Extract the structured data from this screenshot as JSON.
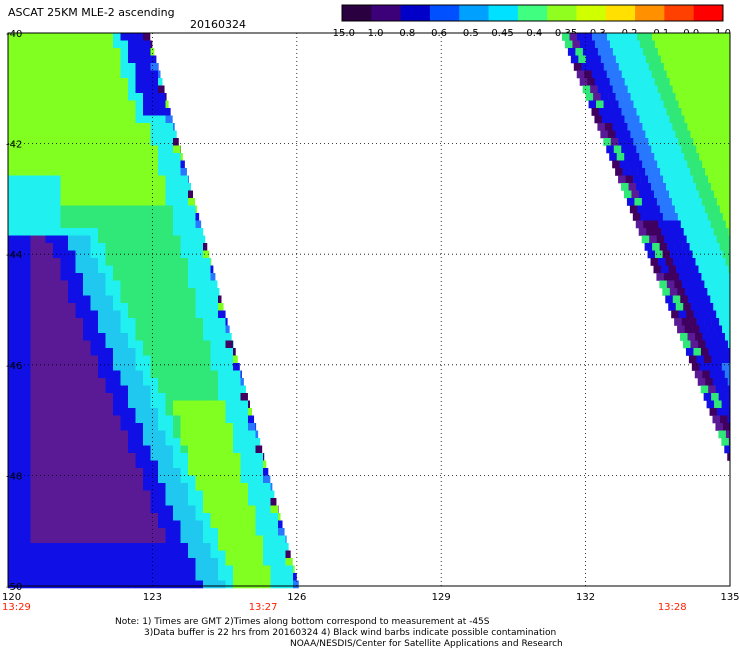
{
  "header": {
    "title": "ASCAT 25KM MLE-2 ascending",
    "date": "20160324"
  },
  "colorbar": {
    "labels": [
      "-15.0",
      "-1.0",
      "-0.8",
      "-0.6",
      "-0.5",
      "-0.45",
      "-0.4",
      "-0.35",
      "-0.3",
      "-0.2",
      "-0.1",
      "0.0",
      "1.0"
    ],
    "colors": [
      "#2a0040",
      "#3c0078",
      "#0000c8",
      "#0050ff",
      "#00a0ff",
      "#00e0ff",
      "#40ff80",
      "#90ff20",
      "#d0ff00",
      "#ffe000",
      "#ff9000",
      "#ff4000",
      "#ff0000"
    ]
  },
  "map": {
    "lat_labels": [
      "-40",
      "-42",
      "-44",
      "-46",
      "-48",
      "-50"
    ],
    "lon_labels": [
      "120",
      "123",
      "126",
      "129",
      "132",
      "135"
    ],
    "time_labels": [
      {
        "text": "13:29",
        "lon": 120
      },
      {
        "text": "13:27",
        "lon": 125.3
      },
      {
        "text": "13:28",
        "lon": 133.8
      }
    ],
    "palette": {
      "deep_purple": "#400060",
      "purple": "#5a1a96",
      "blue": "#1010e6",
      "light_blue": "#2878ff",
      "cyan_blue": "#20c8f0",
      "cyan": "#20f0f0",
      "green": "#30e878",
      "lime": "#80ff20",
      "label_red": "#ff2000"
    }
  },
  "notes": {
    "line1": "Note: 1) Times are GMT 2)Times along bottom correspond to measurement at -45S",
    "line2": "3)Data buffer is 22 hrs from 20160324 4) Black wind barbs indicate possible contamination",
    "line3": "NOAA/NESDIS/Center for Satellite Applications and Research"
  }
}
